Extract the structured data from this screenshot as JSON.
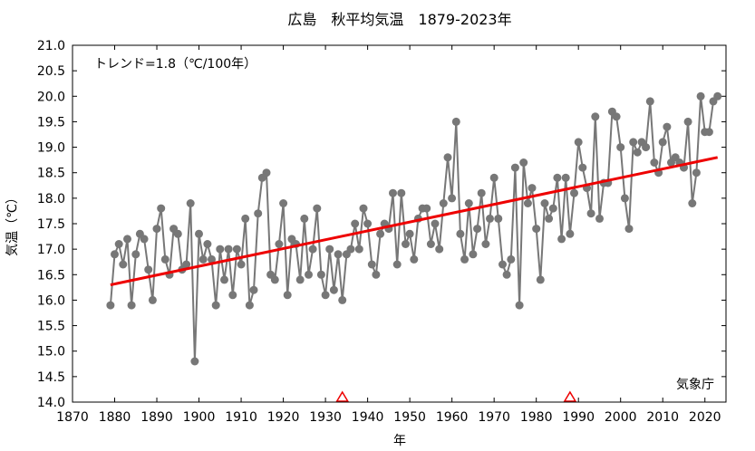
{
  "chart_data": {
    "type": "line",
    "title": "広島　秋平均気温　1879-2023年",
    "xlabel": "年",
    "ylabel": "気温（℃）",
    "trend_label": "トレンド=1.8（℃/100年）",
    "source_label": "気象庁",
    "xlim": [
      1870,
      2025
    ],
    "ylim": [
      14.0,
      21.0
    ],
    "x_ticks": [
      1870,
      1880,
      1890,
      1900,
      1910,
      1920,
      1930,
      1940,
      1950,
      1960,
      1970,
      1980,
      1990,
      2000,
      2010,
      2020
    ],
    "y_ticks": [
      "14.0",
      "14.5",
      "15.0",
      "15.5",
      "16.0",
      "16.5",
      "17.0",
      "17.5",
      "18.0",
      "18.5",
      "19.0",
      "19.5",
      "20.0",
      "20.5",
      "21.0"
    ],
    "series": [
      {
        "x_start": 1879,
        "values": [
          15.9,
          16.9,
          17.1,
          16.7,
          17.2,
          15.9,
          16.9,
          17.3,
          17.2,
          16.6,
          16.0,
          17.4,
          17.8,
          16.8,
          16.5,
          17.4,
          17.3,
          16.6,
          16.7,
          17.9,
          14.8,
          17.3,
          16.8,
          17.1,
          16.8,
          15.9,
          17.0,
          16.4,
          17.0,
          16.1,
          17.0,
          16.7,
          17.6,
          15.9,
          16.2,
          17.7,
          18.4,
          18.5,
          16.5,
          16.4,
          17.1,
          17.9,
          16.1,
          17.2,
          17.1,
          16.4,
          17.6,
          16.5,
          17.0,
          17.8,
          16.5,
          16.1,
          17.0,
          16.2,
          16.9,
          16.0,
          16.9,
          17.0,
          17.5,
          17.0,
          17.8,
          17.5,
          16.7,
          16.5,
          17.3,
          17.5,
          17.4,
          18.1,
          16.7,
          18.1,
          17.1,
          17.3,
          16.8,
          17.6,
          17.8,
          17.8,
          17.1,
          17.5,
          17.0,
          17.9,
          18.8,
          18.0,
          19.5,
          17.3,
          16.8,
          17.9,
          16.9,
          17.4,
          18.1,
          17.1,
          17.6,
          18.4,
          17.6,
          16.7,
          16.5,
          16.8,
          18.6,
          15.9,
          18.7,
          17.9,
          18.2,
          17.4,
          16.4,
          17.9,
          17.6,
          17.8,
          18.4,
          17.2,
          18.4,
          17.3,
          18.1,
          19.1,
          18.6,
          18.2,
          17.7,
          19.6,
          17.6,
          18.3,
          18.3,
          19.7,
          19.6,
          19.0,
          18.0,
          17.4,
          19.1,
          18.9,
          19.1,
          19.0,
          19.9,
          18.7,
          18.5,
          19.1,
          19.4,
          18.7,
          18.8,
          18.7,
          18.6,
          19.5,
          17.9,
          18.5,
          20.0,
          19.3,
          19.3,
          19.9,
          20.0
        ]
      }
    ],
    "trend": {
      "x": [
        1879,
        2023
      ],
      "y": [
        16.3,
        18.8
      ],
      "color": "#ee0000"
    },
    "markers": {
      "type": "triangle",
      "x": [
        1934,
        1988
      ],
      "color": "#ee0000"
    },
    "colors": {
      "series": "#777777",
      "trend": "#ee0000",
      "marker": "#ee0000"
    },
    "grid": false
  }
}
